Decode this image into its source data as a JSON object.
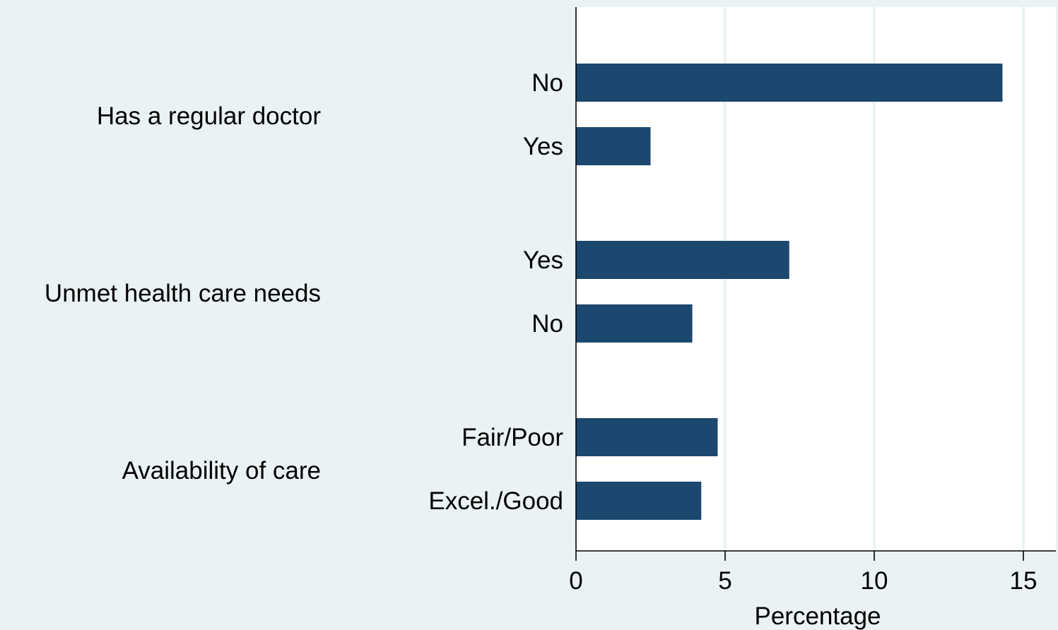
{
  "chart_data": {
    "type": "bar",
    "orientation": "horizontal",
    "xlabel": "Percentage",
    "xlim": [
      0,
      16
    ],
    "xticks": [
      0,
      5,
      10,
      15
    ],
    "grid": true,
    "colors": {
      "bar": "#1c476e",
      "plot_bg": "#ffffff",
      "page_bg": "#eaf2f3",
      "grid": "#eaf2f3"
    },
    "groups": [
      {
        "label": "Has a regular doctor",
        "bars": [
          {
            "label": "No",
            "value": 14.3
          },
          {
            "label": "Yes",
            "value": 2.5
          }
        ]
      },
      {
        "label": "Unmet health care needs",
        "bars": [
          {
            "label": "Yes",
            "value": 7.15
          },
          {
            "label": "No",
            "value": 3.9
          }
        ]
      },
      {
        "label": "Availability of care",
        "bars": [
          {
            "label": "Fair/Poor",
            "value": 4.75
          },
          {
            "label": "Excel./Good",
            "value": 4.2
          }
        ]
      }
    ]
  }
}
